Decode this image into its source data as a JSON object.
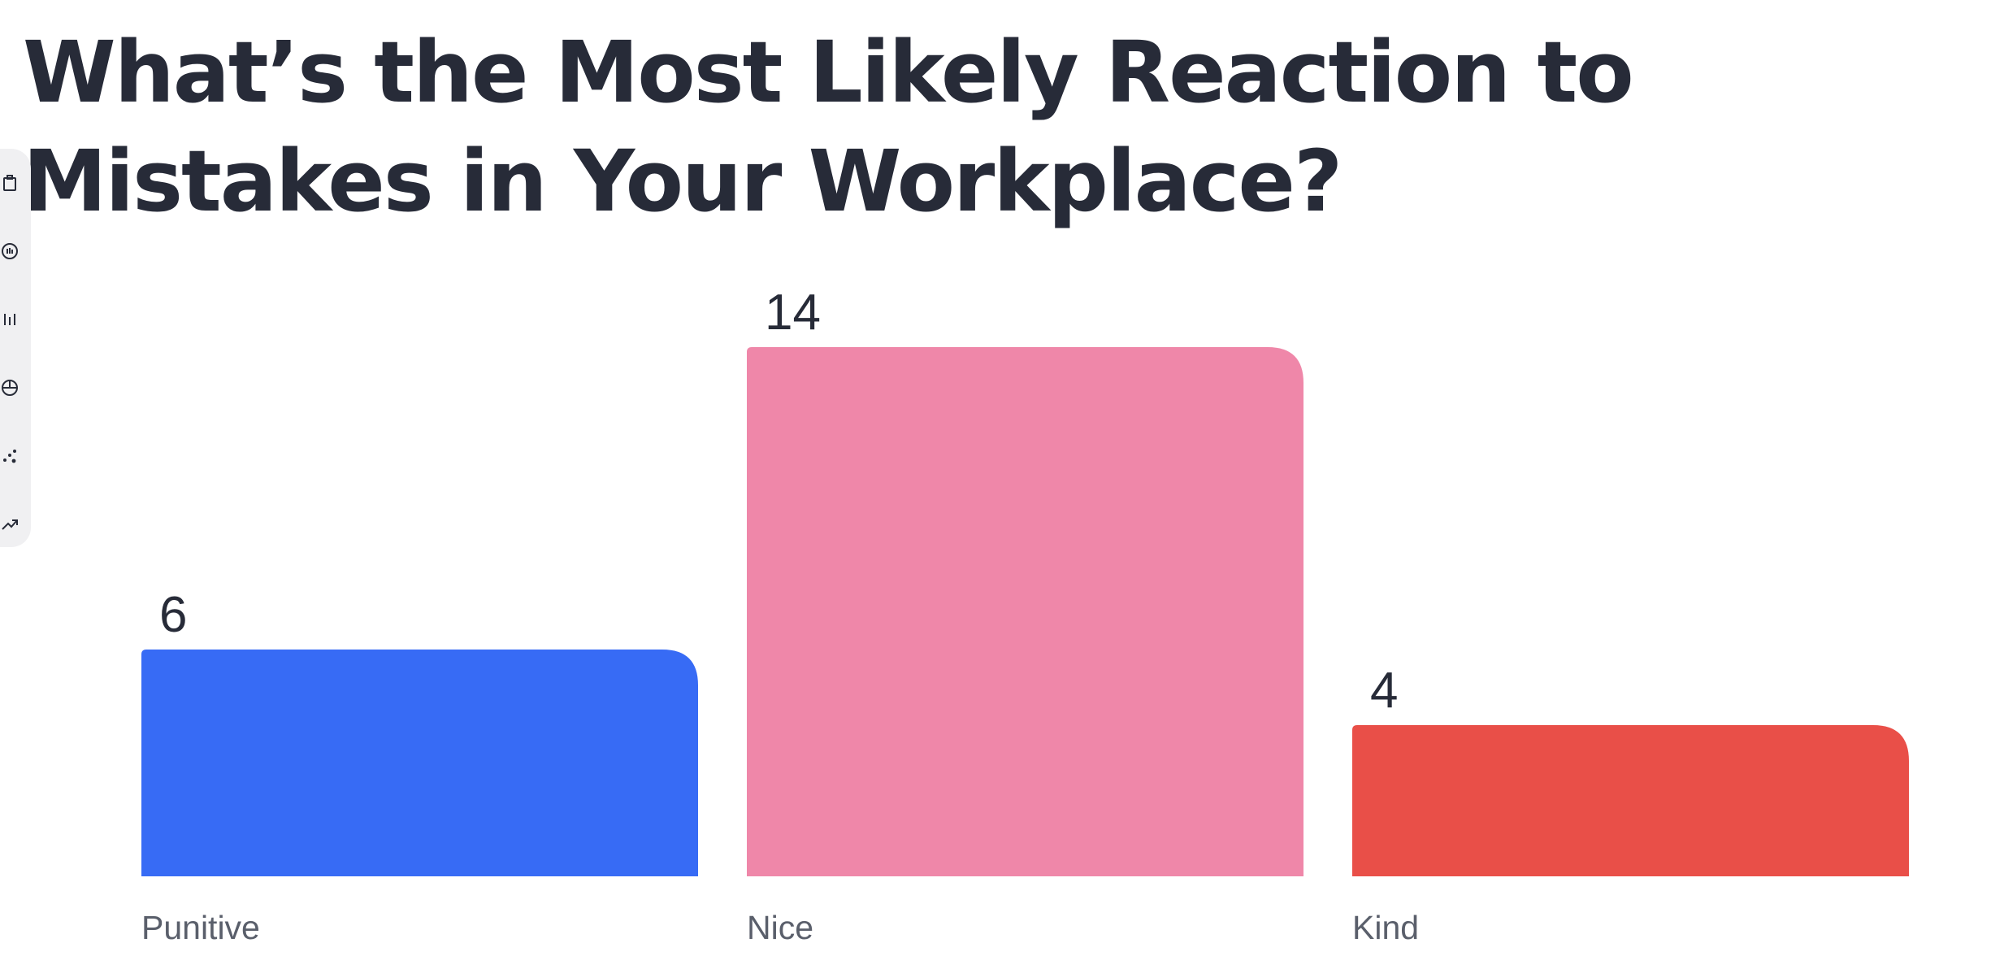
{
  "title": "What’s the Most Likely Reaction to Mistakes in Your Workplace?",
  "toolbar": {
    "icons": [
      "clipboard-icon",
      "chart-icon",
      "sort-icon",
      "pie-chart-icon",
      "scatter-icon",
      "trend-icon"
    ]
  },
  "chart_data": {
    "type": "bar",
    "title": "What’s the Most Likely Reaction to Mistakes in Your Workplace?",
    "categories": [
      "Punitive",
      "Nice",
      "Kind"
    ],
    "values": [
      6,
      14,
      4
    ],
    "colors": [
      "#376bf5",
      "#ef87a9",
      "#e94f48"
    ],
    "xlabel": "",
    "ylabel": "",
    "grid": false,
    "data_labels": true
  }
}
